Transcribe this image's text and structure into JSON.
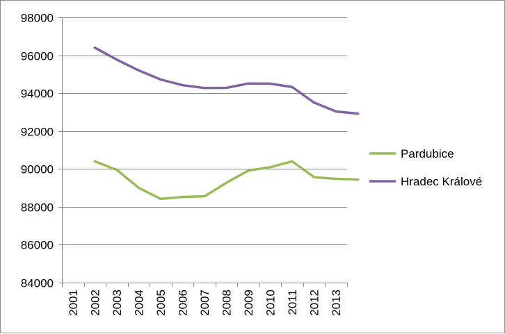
{
  "chart_data": {
    "type": "line",
    "title": "",
    "xlabel": "",
    "ylabel": "",
    "categories": [
      "2001",
      "2002",
      "2003",
      "2004",
      "2005",
      "2006",
      "2007",
      "2008",
      "2009",
      "2010",
      "2011",
      "2012",
      "2013"
    ],
    "ylim": [
      84000,
      98000
    ],
    "yticks": [
      "84000",
      "86000",
      "88000",
      "90000",
      "92000",
      "94000",
      "96000",
      "98000"
    ],
    "grid": "horizontal",
    "legend_position": "right",
    "series": [
      {
        "name": "Pardubice",
        "color": "#9BBB59",
        "values": [
          90400,
          89950,
          89000,
          88420,
          88520,
          88560,
          89270,
          89920,
          90090,
          90400,
          89560,
          89480,
          89440
        ]
      },
      {
        "name": "Hradec Králové",
        "color": "#8064A2",
        "values": [
          96400,
          95770,
          95200,
          94720,
          94420,
          94270,
          94280,
          94510,
          94500,
          94320,
          93500,
          93030,
          92920
        ]
      }
    ]
  }
}
